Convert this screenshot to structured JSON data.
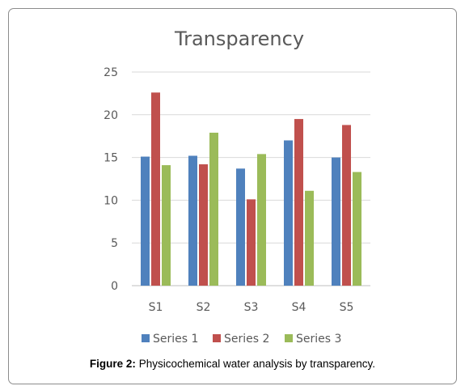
{
  "chart_data": {
    "type": "bar",
    "title": "Transparency",
    "categories": [
      "S1",
      "S2",
      "S3",
      "S4",
      "S5"
    ],
    "series": [
      {
        "name": "Series 1",
        "color": "#4f81bd",
        "values": [
          15.1,
          15.2,
          13.7,
          17.0,
          15.0
        ]
      },
      {
        "name": "Series 2",
        "color": "#c0504d",
        "values": [
          22.6,
          14.2,
          10.1,
          19.5,
          18.8
        ]
      },
      {
        "name": "Series 3",
        "color": "#9bbb59",
        "values": [
          14.1,
          17.9,
          15.4,
          11.1,
          13.3
        ]
      }
    ],
    "xlabel": "",
    "ylabel": "",
    "ylim": [
      0,
      25
    ],
    "yticks": [
      0,
      5,
      10,
      15,
      20,
      25
    ],
    "grid": true,
    "legend_position": "bottom"
  },
  "caption": {
    "label": "Figure 2:",
    "text": " Physicochemical water analysis by transparency."
  }
}
